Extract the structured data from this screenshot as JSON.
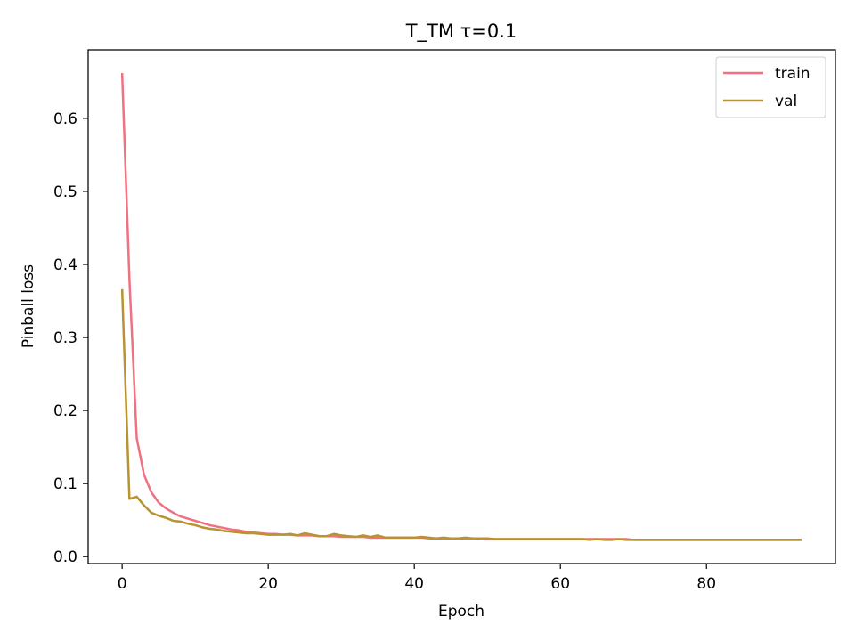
{
  "chart_data": {
    "type": "line",
    "title": "T_TM  τ=0.1",
    "xlabel": "Epoch",
    "ylabel": "Pinball loss",
    "xlim": [
      -4.65,
      97.65
    ],
    "ylim": [
      -0.0095,
      0.6937
    ],
    "xticks": [
      0,
      20,
      40,
      60,
      80
    ],
    "yticks": [
      0.0,
      0.1,
      0.2,
      0.3,
      0.4,
      0.5,
      0.6
    ],
    "ytick_labels": [
      "0.0",
      "0.1",
      "0.2",
      "0.3",
      "0.4",
      "0.5",
      "0.6"
    ],
    "grid": false,
    "legend_position": "top-right",
    "series": [
      {
        "name": "train",
        "color": "#f0717f",
        "x": [
          0,
          1,
          2,
          3,
          4,
          5,
          6,
          7,
          8,
          9,
          10,
          11,
          12,
          13,
          14,
          15,
          16,
          17,
          18,
          19,
          20,
          21,
          22,
          23,
          24,
          25,
          26,
          27,
          28,
          29,
          30,
          31,
          32,
          33,
          34,
          35,
          36,
          37,
          38,
          39,
          40,
          41,
          42,
          43,
          44,
          45,
          46,
          47,
          48,
          49,
          50,
          51,
          52,
          53,
          54,
          55,
          56,
          57,
          58,
          59,
          60,
          61,
          62,
          63,
          64,
          65,
          66,
          67,
          68,
          69,
          70,
          71,
          72,
          73,
          74,
          75,
          76,
          77,
          78,
          79,
          80,
          81,
          82,
          83,
          84,
          85,
          86,
          87,
          88,
          89,
          90,
          91,
          92,
          93
        ],
        "y": [
          0.662,
          0.38,
          0.162,
          0.112,
          0.088,
          0.074,
          0.066,
          0.06,
          0.055,
          0.052,
          0.049,
          0.046,
          0.043,
          0.041,
          0.039,
          0.037,
          0.036,
          0.034,
          0.033,
          0.032,
          0.031,
          0.031,
          0.03,
          0.03,
          0.029,
          0.029,
          0.029,
          0.028,
          0.028,
          0.028,
          0.027,
          0.027,
          0.027,
          0.027,
          0.026,
          0.026,
          0.026,
          0.026,
          0.026,
          0.026,
          0.026,
          0.026,
          0.025,
          0.025,
          0.025,
          0.025,
          0.025,
          0.025,
          0.025,
          0.025,
          0.024,
          0.024,
          0.024,
          0.024,
          0.024,
          0.024,
          0.024,
          0.024,
          0.024,
          0.024,
          0.024,
          0.024,
          0.024,
          0.024,
          0.024,
          0.024,
          0.024,
          0.024,
          0.024,
          0.024,
          0.023,
          0.023,
          0.023,
          0.023,
          0.023,
          0.023,
          0.023,
          0.023,
          0.023,
          0.023,
          0.023,
          0.023,
          0.023,
          0.023,
          0.023,
          0.023,
          0.023,
          0.023,
          0.023,
          0.023,
          0.023,
          0.023,
          0.023,
          0.023
        ]
      },
      {
        "name": "val",
        "color": "#b89330",
        "x": [
          0,
          1,
          2,
          3,
          4,
          5,
          6,
          7,
          8,
          9,
          10,
          11,
          12,
          13,
          14,
          15,
          16,
          17,
          18,
          19,
          20,
          21,
          22,
          23,
          24,
          25,
          26,
          27,
          28,
          29,
          30,
          31,
          32,
          33,
          34,
          35,
          36,
          37,
          38,
          39,
          40,
          41,
          42,
          43,
          44,
          45,
          46,
          47,
          48,
          49,
          50,
          51,
          52,
          53,
          54,
          55,
          56,
          57,
          58,
          59,
          60,
          61,
          62,
          63,
          64,
          65,
          66,
          67,
          68,
          69,
          70,
          71,
          72,
          73,
          74,
          75,
          76,
          77,
          78,
          79,
          80,
          81,
          82,
          83,
          84,
          85,
          86,
          87,
          88,
          89,
          90,
          91,
          92,
          93
        ],
        "y": [
          0.366,
          0.079,
          0.082,
          0.07,
          0.06,
          0.056,
          0.053,
          0.049,
          0.048,
          0.045,
          0.043,
          0.04,
          0.038,
          0.037,
          0.035,
          0.034,
          0.033,
          0.032,
          0.032,
          0.031,
          0.03,
          0.03,
          0.03,
          0.031,
          0.029,
          0.032,
          0.03,
          0.028,
          0.028,
          0.031,
          0.029,
          0.028,
          0.027,
          0.029,
          0.027,
          0.029,
          0.026,
          0.026,
          0.026,
          0.026,
          0.026,
          0.027,
          0.026,
          0.025,
          0.026,
          0.025,
          0.025,
          0.026,
          0.025,
          0.025,
          0.025,
          0.024,
          0.024,
          0.024,
          0.024,
          0.024,
          0.024,
          0.024,
          0.024,
          0.024,
          0.024,
          0.024,
          0.024,
          0.024,
          0.023,
          0.024,
          0.023,
          0.023,
          0.024,
          0.023,
          0.023,
          0.023,
          0.023,
          0.023,
          0.023,
          0.023,
          0.023,
          0.023,
          0.023,
          0.023,
          0.023,
          0.023,
          0.023,
          0.023,
          0.023,
          0.023,
          0.023,
          0.023,
          0.023,
          0.023,
          0.023,
          0.023,
          0.023,
          0.023
        ]
      }
    ]
  }
}
